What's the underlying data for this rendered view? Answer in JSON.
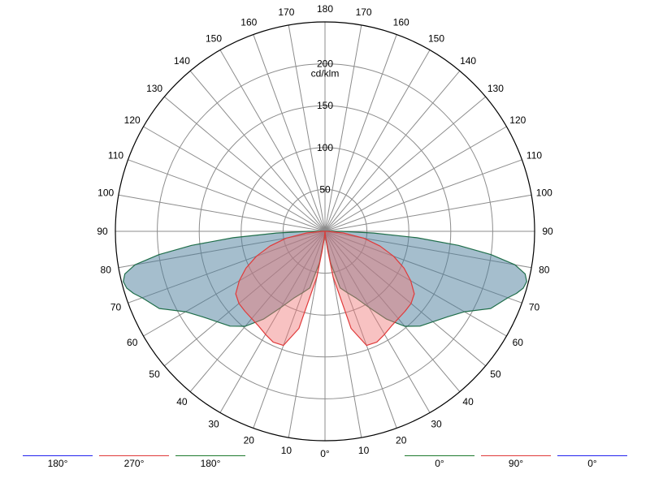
{
  "chart_data": {
    "type": "polar",
    "unit_label": "cd/klm",
    "radial_ticks": [
      "50",
      "100",
      "150",
      "200"
    ],
    "r_max": 250,
    "angle_labels": [
      "0°",
      "10",
      "20",
      "30",
      "40",
      "50",
      "60",
      "70",
      "80",
      "90",
      "100",
      "110",
      "120",
      "130",
      "140",
      "150",
      "160",
      "170",
      "180"
    ],
    "grid": true,
    "series": [
      {
        "planes": [
          "0°",
          "180°"
        ],
        "color": "#1f6e4a",
        "fill": "rgba(75,125,155,0.5)",
        "points": [
          [
            0,
            0
          ],
          [
            5,
            3
          ],
          [
            8,
            14
          ],
          [
            10,
            38
          ],
          [
            15,
            70
          ],
          [
            20,
            78
          ],
          [
            25,
            88
          ],
          [
            30,
            105
          ],
          [
            35,
            128
          ],
          [
            40,
            148
          ],
          [
            45,
            160
          ],
          [
            50,
            168
          ],
          [
            55,
            178
          ],
          [
            60,
            192
          ],
          [
            65,
            218
          ],
          [
            70,
            232
          ],
          [
            72,
            240
          ],
          [
            74,
            246
          ],
          [
            76,
            248
          ],
          [
            78,
            244
          ],
          [
            80,
            230
          ],
          [
            82,
            200
          ],
          [
            84,
            160
          ],
          [
            86,
            110
          ],
          [
            88,
            58
          ],
          [
            90,
            20
          ],
          [
            92,
            2
          ]
        ]
      },
      {
        "planes": [
          "90°",
          "270°"
        ],
        "color": "#e03a3a",
        "fill": "rgba(240,120,120,0.45)",
        "points": [
          [
            0,
            0
          ],
          [
            5,
            6
          ],
          [
            8,
            22
          ],
          [
            10,
            55
          ],
          [
            15,
            120
          ],
          [
            20,
            145
          ],
          [
            25,
            146
          ],
          [
            30,
            142
          ],
          [
            35,
            138
          ],
          [
            40,
            136
          ],
          [
            45,
            135
          ],
          [
            50,
            134
          ],
          [
            55,
            130
          ],
          [
            60,
            118
          ],
          [
            65,
            104
          ],
          [
            70,
            87
          ],
          [
            75,
            68
          ],
          [
            80,
            47
          ],
          [
            85,
            22
          ],
          [
            90,
            3
          ]
        ]
      }
    ],
    "legend_left": [
      {
        "label": "180°",
        "color": "#2222ee"
      },
      {
        "label": "270°",
        "color": "#e03a3a"
      },
      {
        "label": "180°",
        "color": "#1f7a2e"
      }
    ],
    "legend_right": [
      {
        "label": "0°",
        "color": "#1f7a2e"
      },
      {
        "label": "90°",
        "color": "#e03a3a"
      },
      {
        "label": "0°",
        "color": "#2222ee"
      }
    ]
  }
}
